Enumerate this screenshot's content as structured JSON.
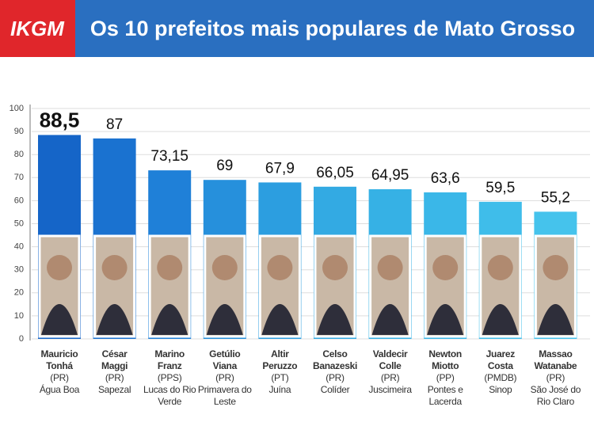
{
  "brand": "IKGM",
  "chart_data": {
    "type": "bar",
    "title": "Os 10 prefeitos mais populares de Mato Grosso",
    "categories": [
      "Mauricio Tonhá",
      "César Maggi",
      "Marino Franz",
      "Getúlio Viana",
      "Altir Peruzzo",
      "Celso Banazeski",
      "Valdecir Colle",
      "Newton Miotto",
      "Juarez Costa",
      "Massao Watanabe"
    ],
    "parties": [
      "(PR)",
      "(PR)",
      "(PPS)",
      "(PR)",
      "(PT)",
      "(PR)",
      "(PR)",
      "(PP)",
      "(PMDB)",
      "(PR)"
    ],
    "cities": [
      "Água Boa",
      "Sapezal",
      "Lucas do Rio Verde",
      "Primavera do Leste",
      "Juína",
      "Colíder",
      "Juscimeira",
      "Pontes e Lacerda",
      "Sinop",
      "São José do Rio Claro"
    ],
    "values": [
      88.5,
      87,
      73.15,
      69,
      67.9,
      66.05,
      64.95,
      63.6,
      59.5,
      55.2
    ],
    "value_labels": [
      "88,5",
      "87",
      "73,15",
      "69",
      "67,9",
      "66,05",
      "64,95",
      "63,6",
      "59,5",
      "55,2"
    ],
    "colors": [
      "#1565c8",
      "#1a72d0",
      "#1f80d8",
      "#2690dc",
      "#2c9ee0",
      "#33aae3",
      "#36b1e5",
      "#3ab7e8",
      "#3fbdea",
      "#45c3ec"
    ],
    "ylim": [
      0,
      100
    ],
    "yticks": [
      0,
      10,
      20,
      30,
      40,
      50,
      60,
      70,
      80,
      90,
      100
    ],
    "grid": true
  }
}
